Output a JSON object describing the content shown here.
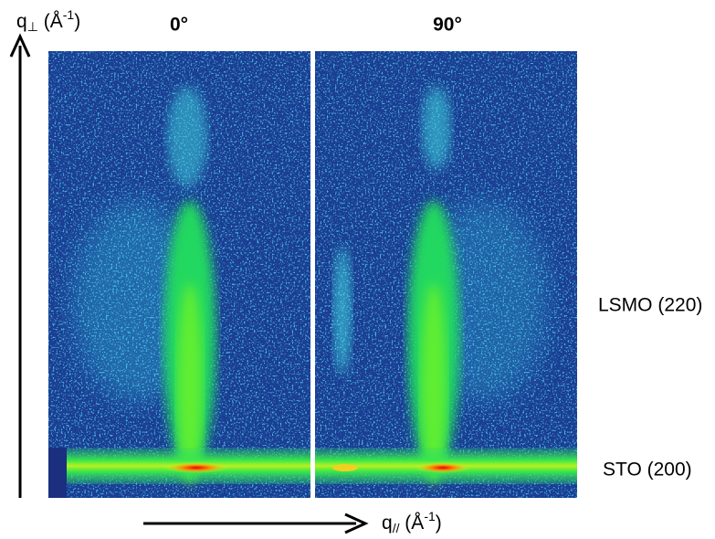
{
  "y_axis": {
    "symbol": "q",
    "subscript": "⊥",
    "unit_open": " (Å",
    "exponent": "-1",
    "unit_close": ")"
  },
  "x_axis": {
    "symbol": "q",
    "subscript": "//",
    "unit_open": " (Å",
    "exponent": "-1",
    "unit_close": ")"
  },
  "panels": [
    {
      "title": "0°"
    },
    {
      "title": "90°"
    }
  ],
  "annotations": [
    "LSMO (220)",
    "STO (200)"
  ]
}
